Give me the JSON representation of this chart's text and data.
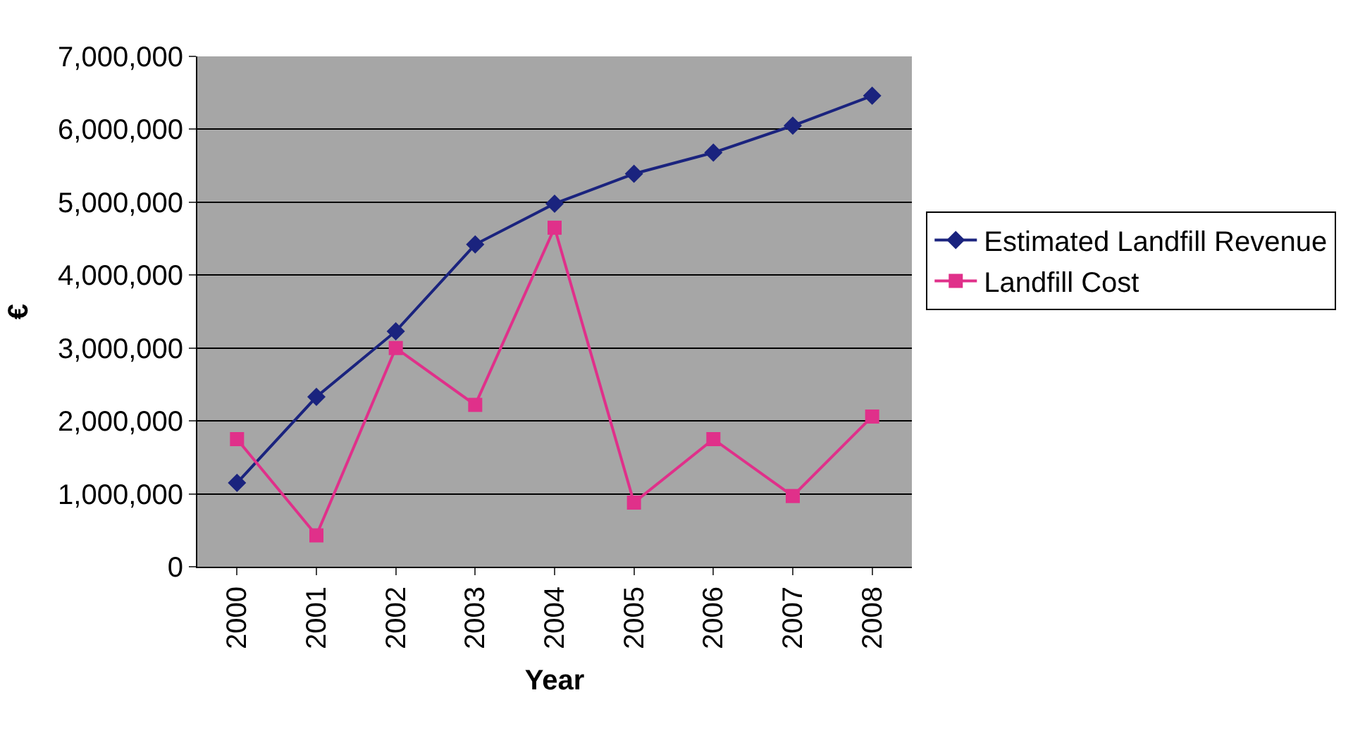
{
  "chart_data": {
    "type": "line",
    "xlabel": "Year",
    "ylabel": "€",
    "categories": [
      "2000",
      "2001",
      "2002",
      "2003",
      "2004",
      "2005",
      "2006",
      "2007",
      "2008"
    ],
    "series": [
      {
        "name": "Estimated Landfill Revenue",
        "color": "#1a237e",
        "marker": "diamond",
        "values": [
          1150000,
          2330000,
          3230000,
          4420000,
          4980000,
          5390000,
          5680000,
          6050000,
          6460000
        ]
      },
      {
        "name": "Landfill Cost",
        "color": "#e0308a",
        "marker": "square",
        "values": [
          1750000,
          430000,
          3000000,
          2220000,
          4650000,
          880000,
          1750000,
          970000,
          2060000
        ]
      }
    ],
    "ylim": [
      0,
      7000000
    ],
    "yticks": [
      {
        "value": 0,
        "label": "0"
      },
      {
        "value": 1000000,
        "label": "1,000,000"
      },
      {
        "value": 2000000,
        "label": "2,000,000"
      },
      {
        "value": 3000000,
        "label": "3,000,000"
      },
      {
        "value": 4000000,
        "label": "4,000,000"
      },
      {
        "value": 5000000,
        "label": "5,000,000"
      },
      {
        "value": 6000000,
        "label": "6,000,000"
      },
      {
        "value": 7000000,
        "label": "7,000,000"
      }
    ],
    "grid": "y",
    "legend": "right"
  }
}
